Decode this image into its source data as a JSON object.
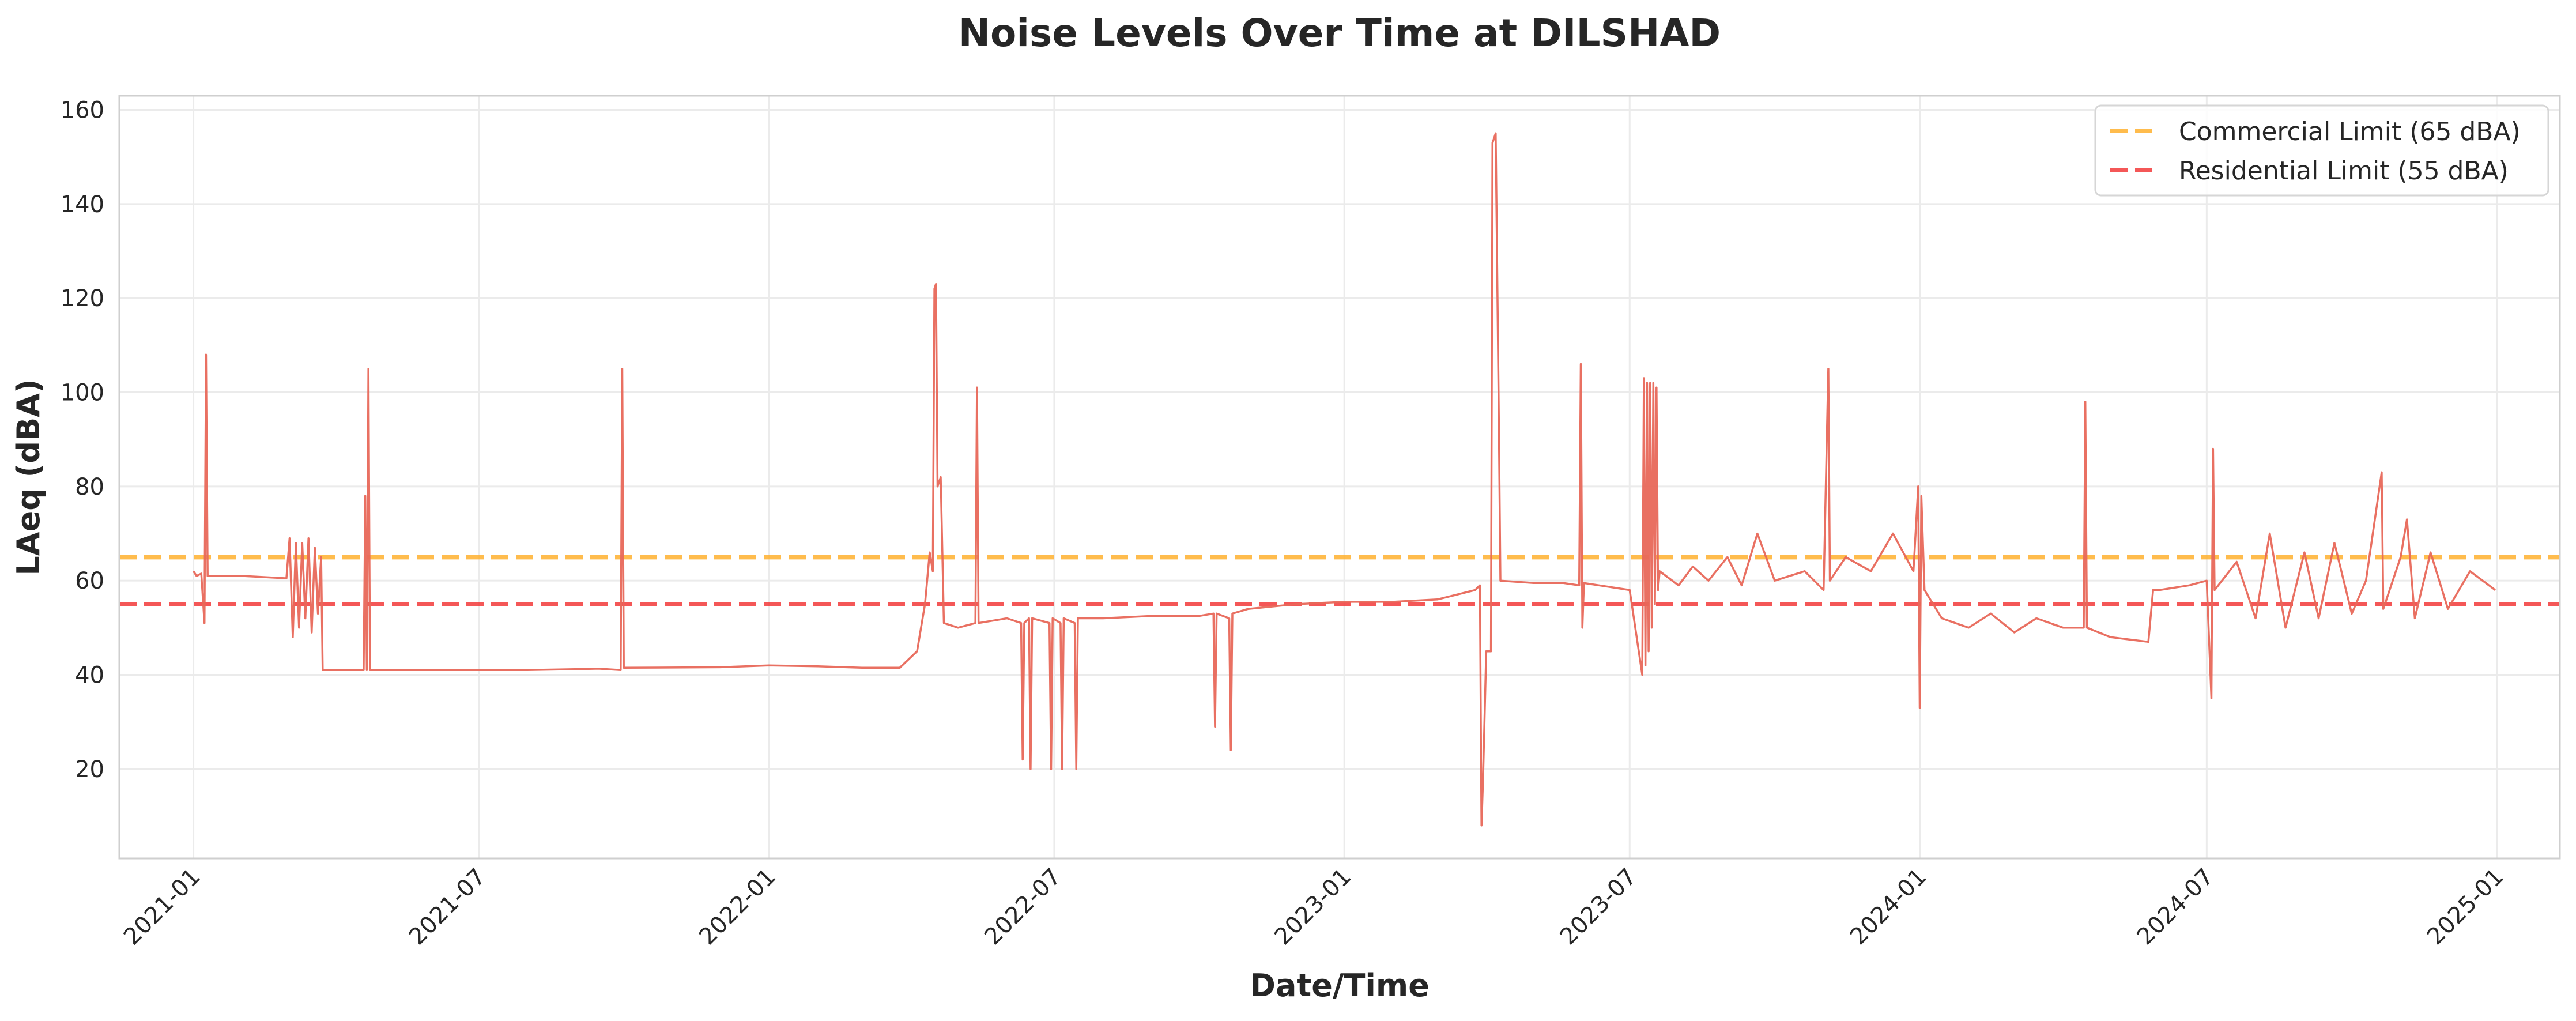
{
  "chart_data": {
    "type": "line",
    "title": "Noise Levels Over Time at DILSHAD",
    "xlabel": "Date/Time",
    "ylabel": "LAeq (dBA)",
    "xlim": [
      "2020-11-15",
      "2025-02-10"
    ],
    "ylim": [
      1,
      163
    ],
    "grid": true,
    "legend_position": "top-right",
    "x_ticks": [
      "2021-01",
      "2021-07",
      "2022-01",
      "2022-07",
      "2023-01",
      "2023-07",
      "2024-01",
      "2024-07",
      "2025-01"
    ],
    "y_ticks": [
      20,
      40,
      60,
      80,
      100,
      120,
      140,
      160
    ],
    "reference_lines": [
      {
        "label": "Commercial Limit (65 dBA)",
        "value": 65,
        "color": "#FFB02E",
        "style": "dashed"
      },
      {
        "label": "Residential Limit (55 dBA)",
        "value": 55,
        "color": "#F23A3A",
        "style": "dashed"
      }
    ],
    "series": [
      {
        "color": "#E8685A",
        "points": [
          [
            "2021-01-01",
            62
          ],
          [
            "2021-01-03",
            61
          ],
          [
            "2021-01-06",
            61.5
          ],
          [
            "2021-01-08",
            51
          ],
          [
            "2021-01-09",
            108
          ],
          [
            "2021-01-10",
            61
          ],
          [
            "2021-02-01",
            61
          ],
          [
            "2021-03-01",
            60.5
          ],
          [
            "2021-03-03",
            69
          ],
          [
            "2021-03-05",
            48
          ],
          [
            "2021-03-07",
            68
          ],
          [
            "2021-03-09",
            50
          ],
          [
            "2021-03-11",
            68
          ],
          [
            "2021-03-13",
            52
          ],
          [
            "2021-03-15",
            69
          ],
          [
            "2021-03-17",
            49
          ],
          [
            "2021-03-19",
            67
          ],
          [
            "2021-03-21",
            53
          ],
          [
            "2021-03-23",
            65
          ],
          [
            "2021-03-24",
            41
          ],
          [
            "2021-04-10",
            41
          ],
          [
            "2021-04-19",
            41
          ],
          [
            "2021-04-20",
            78
          ],
          [
            "2021-04-21",
            41
          ],
          [
            "2021-04-22",
            105
          ],
          [
            "2021-04-23",
            41
          ],
          [
            "2021-06-01",
            41
          ],
          [
            "2021-08-01",
            41
          ],
          [
            "2021-09-15",
            41.3
          ],
          [
            "2021-09-29",
            41
          ],
          [
            "2021-09-30",
            105
          ],
          [
            "2021-10-01",
            41.5
          ],
          [
            "2021-12-01",
            41.6
          ],
          [
            "2022-01-01",
            42
          ],
          [
            "2022-02-01",
            41.8
          ],
          [
            "2022-03-01",
            41.5
          ],
          [
            "2022-03-25",
            41.5
          ],
          [
            "2022-04-05",
            45
          ],
          [
            "2022-04-10",
            55
          ],
          [
            "2022-04-13",
            66
          ],
          [
            "2022-04-15",
            62
          ],
          [
            "2022-04-16",
            122
          ],
          [
            "2022-04-17",
            123
          ],
          [
            "2022-04-18",
            80
          ],
          [
            "2022-04-20",
            82
          ],
          [
            "2022-04-22",
            51
          ],
          [
            "2022-05-01",
            50
          ],
          [
            "2022-05-12",
            51
          ],
          [
            "2022-05-13",
            101
          ],
          [
            "2022-05-14",
            51
          ],
          [
            "2022-06-01",
            52
          ],
          [
            "2022-06-10",
            51
          ],
          [
            "2022-06-11",
            22
          ],
          [
            "2022-06-12",
            51
          ],
          [
            "2022-06-15",
            52
          ],
          [
            "2022-06-16",
            20
          ],
          [
            "2022-06-17",
            52
          ],
          [
            "2022-06-28",
            51
          ],
          [
            "2022-06-29",
            20
          ],
          [
            "2022-06-30",
            52
          ],
          [
            "2022-07-05",
            51
          ],
          [
            "2022-07-06",
            20
          ],
          [
            "2022-07-07",
            52
          ],
          [
            "2022-07-14",
            51
          ],
          [
            "2022-07-15",
            20
          ],
          [
            "2022-07-16",
            52
          ],
          [
            "2022-08-01",
            52
          ],
          [
            "2022-09-01",
            52.5
          ],
          [
            "2022-10-01",
            52.5
          ],
          [
            "2022-10-10",
            53
          ],
          [
            "2022-10-11",
            29
          ],
          [
            "2022-10-12",
            53
          ],
          [
            "2022-10-20",
            52
          ],
          [
            "2022-10-21",
            24
          ],
          [
            "2022-10-22",
            53
          ],
          [
            "2022-11-01",
            54
          ],
          [
            "2022-12-01",
            55
          ],
          [
            "2023-01-01",
            55.5
          ],
          [
            "2023-02-01",
            55.5
          ],
          [
            "2023-03-01",
            56
          ],
          [
            "2023-03-25",
            58
          ],
          [
            "2023-03-28",
            59
          ],
          [
            "2023-03-29",
            8
          ],
          [
            "2023-03-30",
            18
          ],
          [
            "2023-04-01",
            45
          ],
          [
            "2023-04-04",
            45
          ],
          [
            "2023-04-05",
            153
          ],
          [
            "2023-04-07",
            155
          ],
          [
            "2023-04-09",
            95
          ],
          [
            "2023-04-10",
            60
          ],
          [
            "2023-05-01",
            59.5
          ],
          [
            "2023-05-20",
            59.5
          ],
          [
            "2023-05-30",
            59
          ],
          [
            "2023-05-31",
            106
          ],
          [
            "2023-06-01",
            50
          ],
          [
            "2023-06-02",
            59.5
          ],
          [
            "2023-07-01",
            58
          ],
          [
            "2023-07-09",
            40
          ],
          [
            "2023-07-10",
            103
          ],
          [
            "2023-07-11",
            42
          ],
          [
            "2023-07-12",
            102
          ],
          [
            "2023-07-13",
            45
          ],
          [
            "2023-07-14",
            102
          ],
          [
            "2023-07-15",
            50
          ],
          [
            "2023-07-16",
            102
          ],
          [
            "2023-07-17",
            55
          ],
          [
            "2023-07-18",
            101
          ],
          [
            "2023-07-19",
            58
          ],
          [
            "2023-07-20",
            62
          ],
          [
            "2023-08-01",
            59
          ],
          [
            "2023-08-10",
            63
          ],
          [
            "2023-08-20",
            60
          ],
          [
            "2023-09-01",
            65
          ],
          [
            "2023-09-10",
            59
          ],
          [
            "2023-09-20",
            70
          ],
          [
            "2023-10-01",
            60
          ],
          [
            "2023-10-20",
            62
          ],
          [
            "2023-11-01",
            58
          ],
          [
            "2023-11-04",
            105
          ],
          [
            "2023-11-05",
            60
          ],
          [
            "2023-11-15",
            65
          ],
          [
            "2023-12-01",
            62
          ],
          [
            "2023-12-15",
            70
          ],
          [
            "2023-12-28",
            62
          ],
          [
            "2023-12-31",
            80
          ],
          [
            "2024-01-01",
            33
          ],
          [
            "2024-01-02",
            78
          ],
          [
            "2024-01-04",
            58
          ],
          [
            "2024-01-15",
            52
          ],
          [
            "2024-02-01",
            50
          ],
          [
            "2024-02-15",
            53
          ],
          [
            "2024-03-01",
            49
          ],
          [
            "2024-03-15",
            52
          ],
          [
            "2024-04-01",
            50
          ],
          [
            "2024-04-14",
            50
          ],
          [
            "2024-04-15",
            98
          ],
          [
            "2024-04-16",
            50
          ],
          [
            "2024-05-01",
            48
          ],
          [
            "2024-05-25",
            47
          ],
          [
            "2024-05-28",
            58
          ],
          [
            "2024-06-01",
            58
          ],
          [
            "2024-06-20",
            59
          ],
          [
            "2024-07-01",
            60
          ],
          [
            "2024-07-04",
            35
          ],
          [
            "2024-07-05",
            88
          ],
          [
            "2024-07-06",
            58
          ],
          [
            "2024-07-20",
            64
          ],
          [
            "2024-08-01",
            52
          ],
          [
            "2024-08-10",
            70
          ],
          [
            "2024-08-20",
            50
          ],
          [
            "2024-09-01",
            66
          ],
          [
            "2024-09-10",
            52
          ],
          [
            "2024-09-20",
            68
          ],
          [
            "2024-10-01",
            53
          ],
          [
            "2024-10-10",
            60
          ],
          [
            "2024-10-20",
            83
          ],
          [
            "2024-10-21",
            54
          ],
          [
            "2024-11-01",
            65
          ],
          [
            "2024-11-05",
            73
          ],
          [
            "2024-11-10",
            52
          ],
          [
            "2024-11-20",
            66
          ],
          [
            "2024-12-01",
            54
          ],
          [
            "2024-12-15",
            62
          ],
          [
            "2024-12-31",
            58
          ]
        ]
      }
    ]
  }
}
